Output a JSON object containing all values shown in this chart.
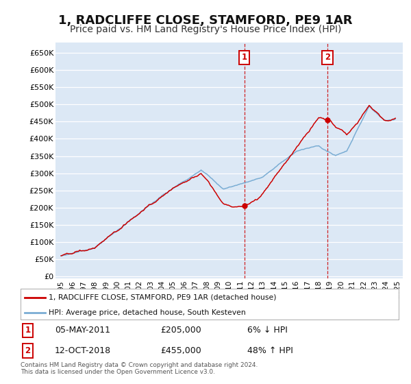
{
  "title": "1, RADCLIFFE CLOSE, STAMFORD, PE9 1AR",
  "subtitle": "Price paid vs. HM Land Registry's House Price Index (HPI)",
  "title_fontsize": 13,
  "subtitle_fontsize": 10,
  "background_color": "#ffffff",
  "plot_background": "#dce8f5",
  "grid_color": "#ffffff",
  "ytick_labels": [
    "£0",
    "£50K",
    "£100K",
    "£150K",
    "£200K",
    "£250K",
    "£300K",
    "£350K",
    "£400K",
    "£450K",
    "£500K",
    "£550K",
    "£600K",
    "£650K"
  ],
  "yticks": [
    0,
    50000,
    100000,
    150000,
    200000,
    250000,
    300000,
    350000,
    400000,
    450000,
    500000,
    550000,
    600000,
    650000
  ],
  "ylim": [
    -5000,
    680000
  ],
  "xlim_start": 1994.5,
  "xlim_end": 2025.5,
  "xticks": [
    1995,
    1996,
    1997,
    1998,
    1999,
    2000,
    2001,
    2002,
    2003,
    2004,
    2005,
    2006,
    2007,
    2008,
    2009,
    2010,
    2011,
    2012,
    2013,
    2014,
    2015,
    2016,
    2017,
    2018,
    2019,
    2020,
    2021,
    2022,
    2023,
    2024,
    2025
  ],
  "line1_color": "#cc0000",
  "line2_color": "#7aadd4",
  "line1_label": "1, RADCLIFFE CLOSE, STAMFORD, PE9 1AR (detached house)",
  "line2_label": "HPI: Average price, detached house, South Kesteven",
  "sale1_date": 2011.35,
  "sale1_price": 205000,
  "sale1_label": "1",
  "sale2_date": 2018.78,
  "sale2_price": 455000,
  "sale2_label": "2",
  "annotation1_date": "05-MAY-2011",
  "annotation1_price": "£205,000",
  "annotation1_pct": "6% ↓ HPI",
  "annotation2_date": "12-OCT-2018",
  "annotation2_price": "£455,000",
  "annotation2_pct": "48% ↑ HPI",
  "footer": "Contains HM Land Registry data © Crown copyright and database right 2024.\nThis data is licensed under the Open Government Licence v3.0."
}
